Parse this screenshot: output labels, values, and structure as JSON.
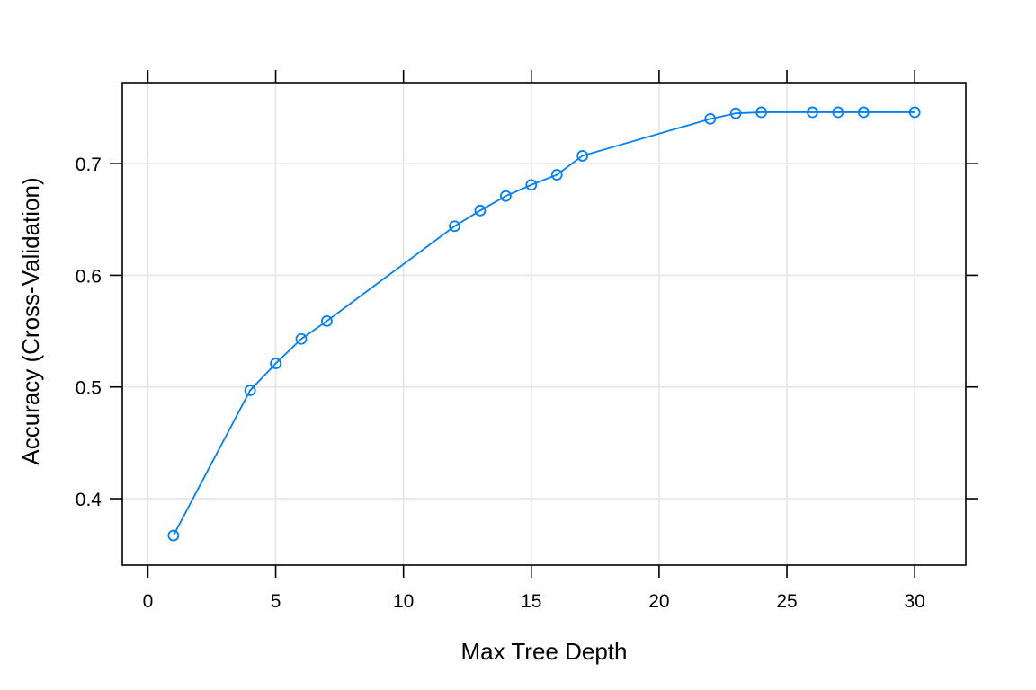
{
  "chart_data": {
    "type": "line",
    "title": "",
    "xlabel": "Max Tree Depth",
    "ylabel": "Accuracy (Cross-Validation)",
    "xlim": [
      -1,
      32
    ],
    "ylim": [
      0.3405,
      0.7725
    ],
    "xticks": [
      0,
      5,
      10,
      15,
      20,
      25,
      30
    ],
    "yticks": [
      0.4,
      0.5,
      0.6,
      0.7
    ],
    "xtick_labels": [
      "0",
      "5",
      "10",
      "15",
      "20",
      "25",
      "30"
    ],
    "ytick_labels": [
      "0.4",
      "0.5",
      "0.6",
      "0.7"
    ],
    "grid": true,
    "series": [
      {
        "x": [
          1,
          4,
          5,
          6,
          7,
          12,
          13,
          14,
          15,
          16,
          17,
          22,
          23,
          24,
          26,
          27,
          28,
          30
        ],
        "y": [
          0.367,
          0.497,
          0.521,
          0.543,
          0.559,
          0.644,
          0.658,
          0.671,
          0.681,
          0.69,
          0.707,
          0.74,
          0.745,
          0.746,
          0.746,
          0.746,
          0.746,
          0.746
        ],
        "color": "#0080ff",
        "marker": "open-circle"
      }
    ],
    "colors": {
      "line": "#0080ff",
      "grid": "#e5e5e5",
      "frame": "#000000"
    }
  }
}
